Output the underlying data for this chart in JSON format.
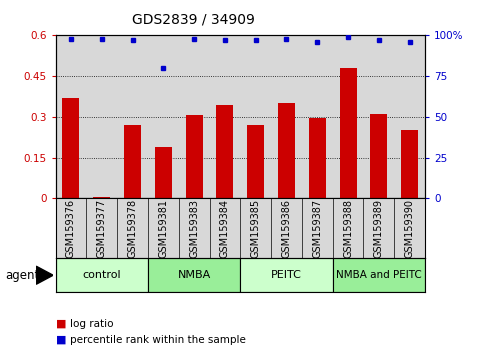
{
  "title": "GDS2839 / 34909",
  "categories": [
    "GSM159376",
    "GSM159377",
    "GSM159378",
    "GSM159381",
    "GSM159383",
    "GSM159384",
    "GSM159385",
    "GSM159386",
    "GSM159387",
    "GSM159388",
    "GSM159389",
    "GSM159390"
  ],
  "log_ratio": [
    0.37,
    0.005,
    0.27,
    0.19,
    0.305,
    0.345,
    0.27,
    0.35,
    0.295,
    0.48,
    0.31,
    0.25
  ],
  "percentile_rank": [
    98,
    98,
    97,
    80,
    98,
    97,
    97,
    98,
    96,
    99,
    97,
    96
  ],
  "bar_color": "#cc0000",
  "dot_color": "#0000cc",
  "ylim_left": [
    0,
    0.6
  ],
  "ylim_right": [
    0,
    100
  ],
  "yticks_left": [
    0,
    0.15,
    0.3,
    0.45,
    0.6
  ],
  "yticks_right": [
    0,
    25,
    50,
    75,
    100
  ],
  "ytick_labels_left": [
    "0",
    "0.15",
    "0.3",
    "0.45",
    "0.6"
  ],
  "ytick_labels_right": [
    "0",
    "25",
    "50",
    "75",
    "100%"
  ],
  "groups": [
    {
      "label": "control",
      "start": 0,
      "end": 3,
      "color": "#ccffcc"
    },
    {
      "label": "NMBA",
      "start": 3,
      "end": 6,
      "color": "#99ee99"
    },
    {
      "label": "PEITC",
      "start": 6,
      "end": 9,
      "color": "#ccffcc"
    },
    {
      "label": "NMBA and PEITC",
      "start": 9,
      "end": 12,
      "color": "#99ee99"
    }
  ],
  "agent_label": "agent",
  "legend_items": [
    {
      "label": "log ratio",
      "color": "#cc0000"
    },
    {
      "label": "percentile rank within the sample",
      "color": "#0000cc"
    }
  ],
  "background_color": "#ffffff",
  "plot_bg_color": "#d8d8d8",
  "grid_color": "#000000",
  "tick_color_left": "#cc0000",
  "tick_color_right": "#0000cc",
  "title_fontsize": 10,
  "tick_fontsize": 7.5,
  "label_fontsize": 8.5,
  "sample_label_fontsize": 7.0
}
